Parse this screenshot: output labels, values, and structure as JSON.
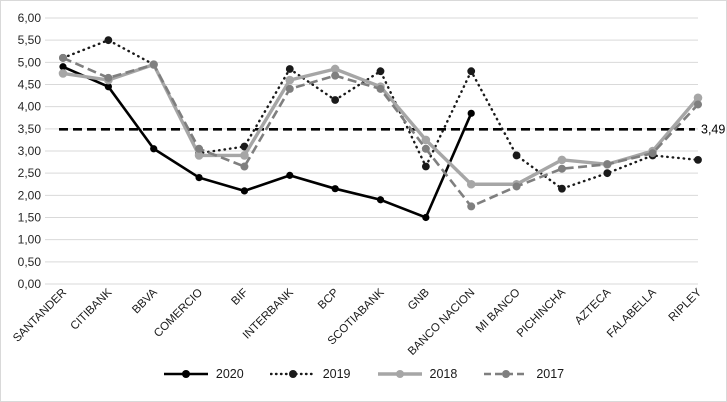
{
  "chart_data": {
    "type": "line",
    "title": "",
    "xlabel": "",
    "ylabel": "",
    "ylim": [
      0,
      6
    ],
    "grid": true,
    "legend_position": "bottom",
    "categories": [
      "SANTANDER",
      "CITIBANK",
      "BBVA",
      "COMERCIO",
      "BIF",
      "INTERBANK",
      "BCP",
      "SCOTIABANK",
      "GNB",
      "BANCO NACION",
      "MI BANCO",
      "PICHINCHA",
      "AZTECA",
      "FALABELLA",
      "RIPLEY"
    ],
    "y_ticks": [
      "6,00",
      "5,50",
      "5,00",
      "4,50",
      "4,00",
      "3,50",
      "3,00",
      "2,50",
      "2,00",
      "1,50",
      "1,00",
      "0,50",
      "0,00"
    ],
    "series": [
      {
        "name": "2020",
        "color": "#000000",
        "style": "solid",
        "values": [
          4.9,
          4.45,
          3.05,
          2.4,
          2.1,
          2.45,
          2.15,
          1.9,
          1.5,
          3.85,
          null,
          null,
          null,
          null,
          null
        ]
      },
      {
        "name": "2019",
        "color": "#1a1a1a",
        "style": "dotted",
        "values": [
          5.1,
          5.5,
          4.95,
          2.95,
          3.1,
          4.85,
          4.15,
          4.8,
          2.65,
          4.8,
          2.9,
          2.15,
          2.5,
          2.9,
          2.8
        ]
      },
      {
        "name": "2018",
        "color": "#a6a6a6",
        "style": "solid",
        "values": [
          4.75,
          4.6,
          4.95,
          2.9,
          2.9,
          4.6,
          4.85,
          4.45,
          3.25,
          2.25,
          2.25,
          2.8,
          2.7,
          3.0,
          4.2
        ]
      },
      {
        "name": "2017",
        "color": "#7f7f7f",
        "style": "dashed",
        "values": [
          5.1,
          4.65,
          4.95,
          3.05,
          2.65,
          4.4,
          4.7,
          4.4,
          3.05,
          1.75,
          2.2,
          2.6,
          2.7,
          2.95,
          4.05
        ]
      }
    ],
    "reference_line": {
      "value": 3.49,
      "label": "3,49",
      "color": "#000000"
    },
    "gridline_color": "#d9d9d9"
  }
}
